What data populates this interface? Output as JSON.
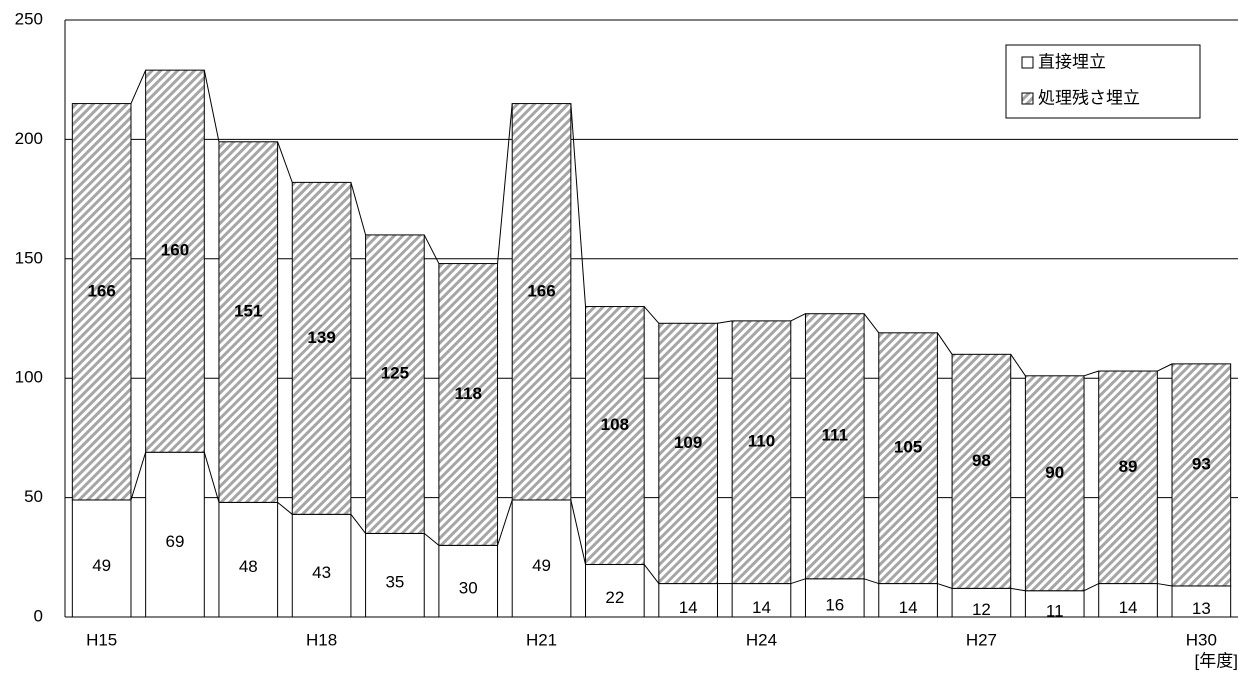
{
  "chart_data": {
    "type": "stacked_bar",
    "categories": [
      "H15",
      null,
      null,
      "H18",
      null,
      null,
      "H21",
      null,
      null,
      "H24",
      null,
      null,
      "H27",
      null,
      null,
      "H30"
    ],
    "x_label": "[年度]",
    "series": [
      {
        "name": "直接埋立",
        "color": "#ffffff",
        "values": [
          49,
          69,
          48,
          43,
          35,
          30,
          49,
          22,
          14,
          14,
          16,
          14,
          12,
          11,
          14,
          13
        ]
      },
      {
        "name": "処理残さ埋立",
        "color": "#a6a6a6",
        "hatch": true,
        "values": [
          166,
          160,
          151,
          139,
          125,
          118,
          166,
          108,
          109,
          110,
          111,
          105,
          98,
          90,
          89,
          93
        ]
      }
    ],
    "ylim": [
      0,
      250
    ],
    "yticks": [
      0,
      50,
      100,
      150,
      200,
      250
    ],
    "grid": true,
    "legend": "top-right"
  }
}
